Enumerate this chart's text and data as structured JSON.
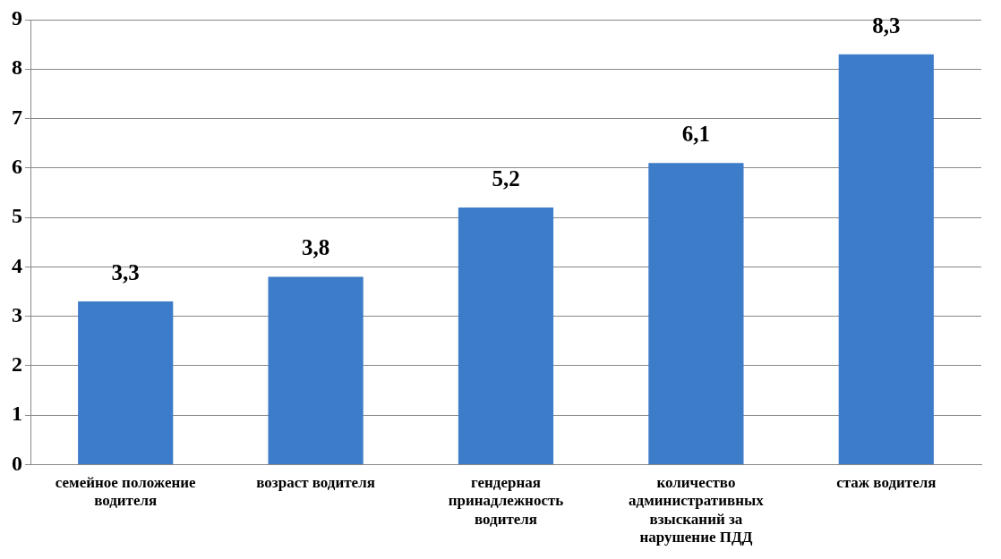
{
  "chart_data": {
    "type": "bar",
    "categories": [
      "семейное положение водителя",
      "возраст водителя",
      "гендерная принадлежность водителя",
      "количество административных взысканий за нарушение ПДД",
      "стаж водителя"
    ],
    "values": [
      3.3,
      3.8,
      5.2,
      6.1,
      8.3
    ],
    "value_labels": [
      "3,3",
      "3,8",
      "5,2",
      "6,1",
      "8,3"
    ],
    "color": "#3d7cc9",
    "ylim": [
      0,
      9
    ],
    "yticks": [
      0,
      1,
      2,
      3,
      4,
      5,
      6,
      7,
      8,
      9
    ],
    "grid": "y",
    "legend": false
  }
}
